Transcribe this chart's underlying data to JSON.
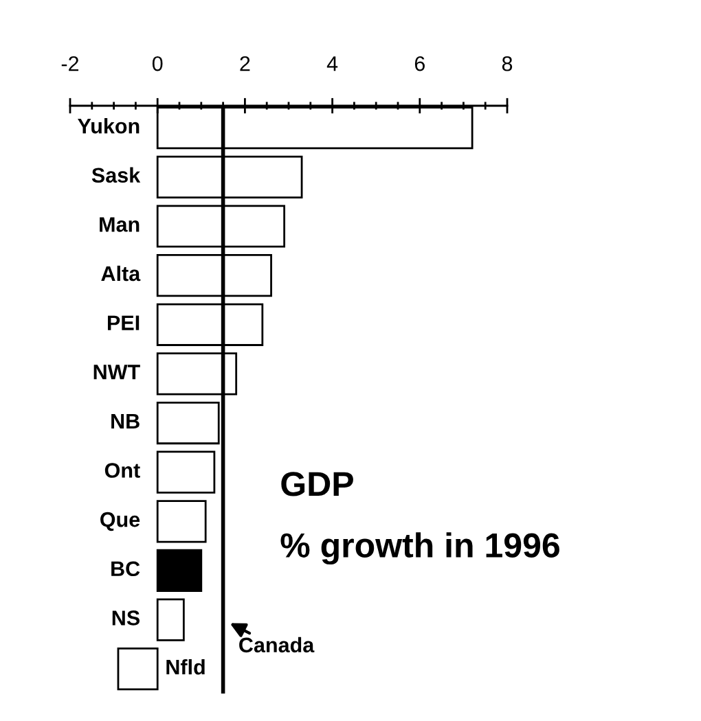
{
  "chart_data": {
    "type": "bar",
    "orientation": "horizontal",
    "title": "GDP",
    "subtitle": "% growth in 1996",
    "categories": [
      "Yukon",
      "Sask",
      "Man",
      "Alta",
      "PEI",
      "NWT",
      "NB",
      "Ont",
      "Que",
      "BC",
      "NS",
      "Nfld"
    ],
    "values": [
      7.2,
      3.3,
      2.9,
      2.6,
      2.4,
      1.8,
      1.4,
      1.3,
      1.1,
      1.0,
      0.6,
      -0.9
    ],
    "colors": [
      "#ffffff",
      "#ffffff",
      "#ffffff",
      "#ffffff",
      "#ffffff",
      "#ffffff",
      "#ffffff",
      "#ffffff",
      "#ffffff",
      "#000000",
      "#ffffff",
      "#ffffff"
    ],
    "xlim": [
      -2,
      8
    ],
    "xticks": [
      -2,
      {
        "value": -1.5,
        "label": null
      },
      {
        "value": -1,
        "label": null
      },
      {
        "value": -0.5,
        "label": null
      },
      0,
      {
        "value": 0.5,
        "label": null
      },
      {
        "value": 1,
        "label": null
      },
      {
        "value": 1.5,
        "label": null
      },
      2,
      {
        "value": 2.5,
        "label": null
      },
      {
        "value": 3,
        "label": null
      },
      {
        "value": 3.5,
        "label": null
      },
      4,
      {
        "value": 4.5,
        "label": null
      },
      {
        "value": 5,
        "label": null
      },
      {
        "value": 5.5,
        "label": null
      },
      6,
      {
        "value": 6.5,
        "label": null
      },
      {
        "value": 7,
        "label": null
      },
      {
        "value": 7.5,
        "label": null
      },
      8
    ],
    "ref_lines": [
      {
        "axis": "x",
        "value": 1.5,
        "label": "Canada",
        "color": "#000000"
      }
    ],
    "grid": false,
    "legend": false
  }
}
